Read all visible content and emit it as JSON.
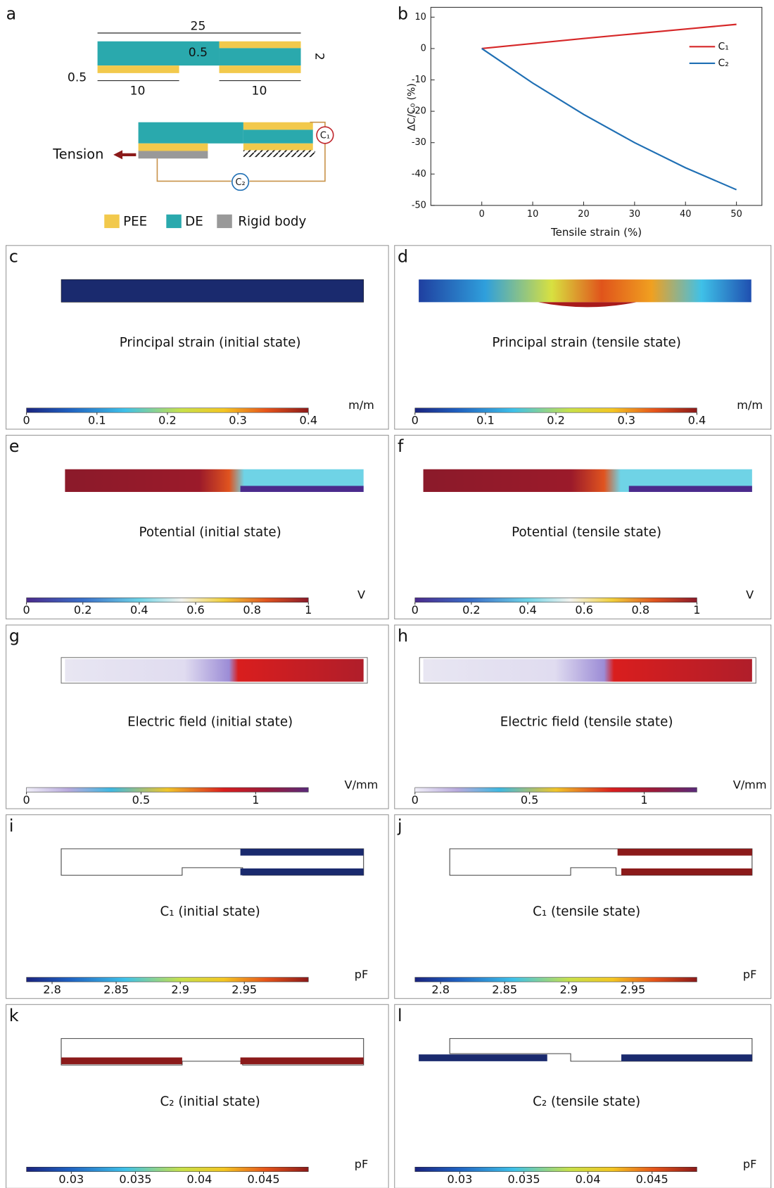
{
  "panel_a": {
    "label": "a",
    "dimensions": [
      25,
      0.5,
      2,
      0.5,
      10,
      10
    ],
    "tension": "Tension",
    "circuits": [
      "C₁",
      "C₂"
    ],
    "legend": [
      "PEE",
      "DE",
      "Rigid body"
    ]
  },
  "chart_data": {
    "type": "line",
    "panel_label": "b",
    "x_label": "Tensile strain (%)",
    "y_label": "ΔC/C₀ (%)",
    "x": [
      0,
      10,
      20,
      30,
      40,
      50
    ],
    "series": [
      {
        "name": "C₁",
        "color": "#d62728",
        "values": [
          0,
          1.6,
          3.2,
          4.7,
          6.2,
          7.7
        ]
      },
      {
        "name": "C₂",
        "color": "#1f6fb4",
        "values": [
          0,
          -11,
          -21,
          -30,
          -38,
          -45
        ]
      }
    ],
    "xlim": [
      -10,
      55
    ],
    "ylim": [
      -50,
      10
    ],
    "xticks": [
      0,
      10,
      20,
      30,
      40,
      50
    ],
    "yticks": [
      -50,
      -40,
      -30,
      -20,
      -10,
      0,
      10
    ],
    "legend": "upper right"
  },
  "maps": [
    {
      "label": "c",
      "caption": "Principal strain (initial state)",
      "unit": "m/m",
      "colormap": "jet",
      "lim": [
        0,
        0.4
      ],
      "ticks": [
        0,
        0.1,
        0.2,
        0.3,
        0.4
      ]
    },
    {
      "label": "d",
      "caption": "Principal strain (tensile state)",
      "unit": "m/m",
      "colormap": "jet",
      "lim": [
        0,
        0.4
      ],
      "ticks": [
        0,
        0.1,
        0.2,
        0.3,
        0.4
      ]
    },
    {
      "label": "e",
      "caption": "Potential (initial state)",
      "unit": "V",
      "colormap": "wave",
      "lim": [
        0,
        1
      ],
      "ticks": [
        0,
        0.2,
        0.4,
        0.6,
        0.8,
        1
      ]
    },
    {
      "label": "f",
      "caption": "Potential (tensile state)",
      "unit": "V",
      "colormap": "wave",
      "lim": [
        0,
        1
      ],
      "ticks": [
        0,
        0.2,
        0.4,
        0.6,
        0.8,
        1
      ]
    },
    {
      "label": "g",
      "caption": "Electric field (initial state)",
      "unit": "V/mm",
      "colormap": "field",
      "lim": [
        0,
        1.23
      ],
      "ticks": [
        0,
        0.5,
        1
      ]
    },
    {
      "label": "h",
      "caption": "Electric field (tensile state)",
      "unit": "V/mm",
      "colormap": "field",
      "lim": [
        0,
        1.23
      ],
      "ticks": [
        0,
        0.5,
        1
      ]
    },
    {
      "label": "i",
      "caption": "C₁ (initial state)",
      "unit": "pF",
      "colormap": "jet",
      "lim": [
        2.78,
        3.0
      ],
      "ticks": [
        2.8,
        2.85,
        2.9,
        2.95
      ]
    },
    {
      "label": "j",
      "caption": "C₁ (tensile state)",
      "unit": "pF",
      "colormap": "jet",
      "lim": [
        2.78,
        3.0
      ],
      "ticks": [
        2.8,
        2.85,
        2.9,
        2.95
      ]
    },
    {
      "label": "k",
      "caption": "C₂ (initial state)",
      "unit": "pF",
      "colormap": "jet",
      "lim": [
        0.0265,
        0.0485
      ],
      "ticks": [
        0.03,
        0.035,
        0.04,
        0.045
      ]
    },
    {
      "label": "l",
      "caption": "C₂ (tensile state)",
      "unit": "pF",
      "colormap": "jet",
      "lim": [
        0.0265,
        0.0485
      ],
      "ticks": [
        0.03,
        0.035,
        0.04,
        0.045
      ]
    }
  ]
}
